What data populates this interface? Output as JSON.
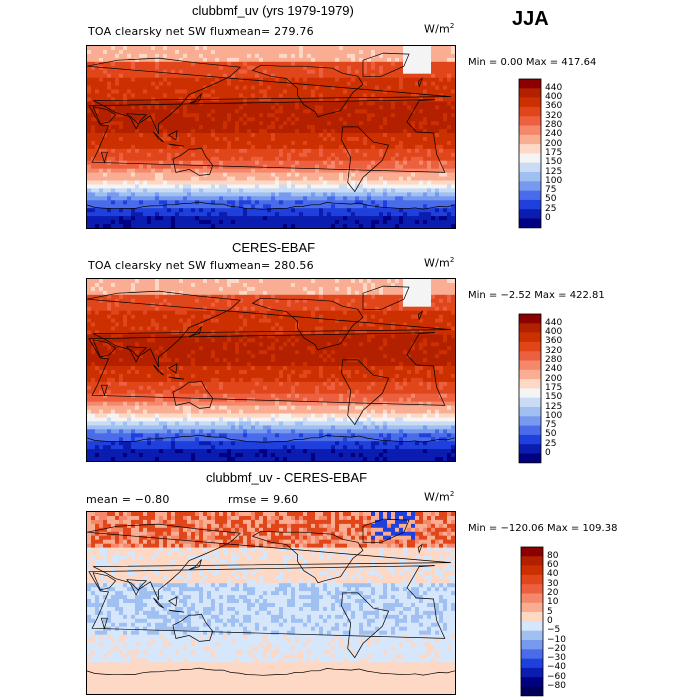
{
  "season": "JJA",
  "panels": [
    {
      "title": "clubbmf_uv (yrs 1979-1979)",
      "subtitle_left": "TOA clearsky net SW flux",
      "stat_left": "mean= 279.76",
      "stat_right": "",
      "units": "W/m",
      "units_exp": "2",
      "minmax": "Min =    0.00 Max = 417.64",
      "kind": "abs"
    },
    {
      "title": "CERES-EBAF",
      "subtitle_left": "TOA clearsky net SW flux",
      "stat_left": "mean= 280.56",
      "stat_right": "",
      "units": "W/m",
      "units_exp": "2",
      "minmax": "Min =  −2.52 Max = 422.81",
      "kind": "abs"
    },
    {
      "title": "clubbmf_uv - CERES-EBAF",
      "subtitle_left": "mean =  −0.80",
      "stat_left": "rmse =   9.60",
      "stat_right": "",
      "units": "W/m",
      "units_exp": "2",
      "minmax": "Min = −120.06 Max = 109.38",
      "kind": "diff"
    }
  ],
  "colorbar_abs": {
    "labels": [
      "440",
      "400",
      "360",
      "320",
      "280",
      "240",
      "200",
      "175",
      "150",
      "125",
      "100",
      "75",
      "50",
      "25",
      "0"
    ],
    "colors": [
      "#8b0000",
      "#b22000",
      "#cc3000",
      "#e0461a",
      "#ec6040",
      "#f5876a",
      "#f9ad92",
      "#fdd8c5",
      "#f4f4f4",
      "#c9dbf5",
      "#a1c0f2",
      "#7799ee",
      "#4a6cea",
      "#1f40dc",
      "#0a1db0",
      "#000080"
    ]
  },
  "colorbar_diff": {
    "labels": [
      "80",
      "60",
      "40",
      "30",
      "20",
      "10",
      "5",
      "0",
      "−5",
      "−10",
      "−20",
      "−30",
      "−40",
      "−60",
      "−80"
    ],
    "colors": [
      "#8b0000",
      "#b22000",
      "#cc3000",
      "#e0461a",
      "#ec6040",
      "#f5876a",
      "#f9ad92",
      "#fdd8c5",
      "#d6e6fb",
      "#a1c0f2",
      "#7799ee",
      "#4a6cea",
      "#1f40dc",
      "#0a1db0",
      "#000080",
      "#00005a"
    ]
  }
}
